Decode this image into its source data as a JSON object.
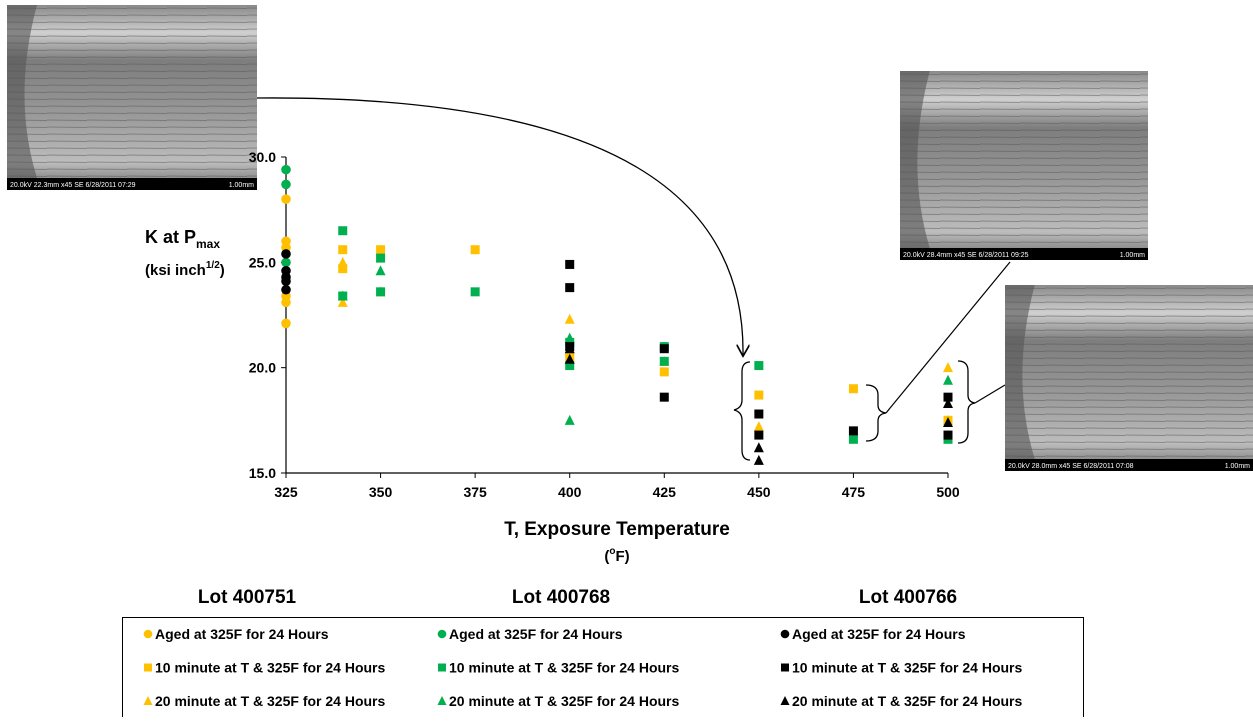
{
  "chart_data": {
    "type": "scatter",
    "ylabel": "K at P",
    "ylabel_sub": "max",
    "yunit": "(ksi inch",
    "yunit_sup": "1/2",
    "yunit_end": ")",
    "xlabel": "T, Exposure Temperature",
    "xunit": "(",
    "xunit_sup": "o",
    "xunit_end": "F)",
    "xlim": [
      325,
      500
    ],
    "xticks": [
      325,
      350,
      375,
      400,
      425,
      450,
      475,
      500
    ],
    "ylim": [
      15,
      30
    ],
    "yticks": [
      {
        "value": 15,
        "label": "15.0"
      },
      {
        "value": 20,
        "label": "20.0"
      },
      {
        "value": 25,
        "label": "25.0"
      },
      {
        "value": 30,
        "label": "30.0"
      }
    ],
    "grid": false,
    "legend_groups": [
      "Lot 400751",
      "Lot 400768",
      "Lot 400766"
    ],
    "series": [
      {
        "name": "Aged at 325F for 24 Hours",
        "color": "#ffc000",
        "marker": "circle",
        "x": [
          325,
          325,
          325,
          325,
          325,
          325
        ],
        "values": [
          28.0,
          26.0,
          25.7,
          23.4,
          23.1,
          22.1
        ]
      },
      {
        "name": "10 minute at T & 325F for 24 Hours",
        "color": "#ffc000",
        "marker": "square",
        "x": [
          340,
          340,
          350,
          375,
          400,
          425,
          450,
          475,
          500
        ],
        "values": [
          25.6,
          24.7,
          25.6,
          25.6,
          20.5,
          19.8,
          18.7,
          19.0,
          17.5
        ]
      },
      {
        "name": "20 minute at T & 325F for 24 Hours",
        "color": "#ffc000",
        "marker": "triangle",
        "x": [
          340,
          340,
          350,
          400,
          400,
          425,
          450,
          500,
          500
        ],
        "values": [
          25.0,
          23.1,
          23.6,
          22.3,
          20.8,
          20.3,
          17.2,
          20.0,
          17.5
        ]
      },
      {
        "name": "Aged at 325F for 24 Hours",
        "color": "#00b050",
        "marker": "circle",
        "x": [
          325,
          325,
          325
        ],
        "values": [
          29.4,
          28.7,
          25.0
        ]
      },
      {
        "name": "10 minute at T & 325F for 24 Hours",
        "color": "#00b050",
        "marker": "square",
        "x": [
          340,
          340,
          350,
          350,
          375,
          400,
          400,
          425,
          425,
          450,
          475,
          500
        ],
        "values": [
          26.5,
          23.4,
          25.2,
          23.6,
          23.6,
          21.2,
          20.1,
          21.0,
          20.3,
          20.1,
          16.6,
          16.6
        ]
      },
      {
        "name": "20 minute at T & 325F for 24 Hours",
        "color": "#00b050",
        "marker": "triangle",
        "x": [
          340,
          350,
          400,
          400,
          500
        ],
        "values": [
          23.4,
          24.6,
          21.4,
          17.5,
          19.4
        ]
      },
      {
        "name": "Aged at 325F for 24 Hours",
        "color": "#000000",
        "marker": "circle",
        "x": [
          325,
          325,
          325,
          325,
          325
        ],
        "values": [
          25.4,
          24.6,
          24.3,
          24.1,
          23.7
        ]
      },
      {
        "name": "10 minute at T & 325F for 24 Hours",
        "color": "#000000",
        "marker": "square",
        "x": [
          400,
          400,
          400,
          425,
          425,
          450,
          450,
          475,
          500,
          500
        ],
        "values": [
          24.9,
          23.8,
          21.0,
          20.9,
          18.6,
          17.8,
          16.8,
          17.0,
          18.6,
          16.8
        ]
      },
      {
        "name": "20 minute at T & 325F for 24 Hours",
        "color": "#000000",
        "marker": "triangle",
        "x": [
          400,
          400,
          450,
          450,
          500,
          500
        ],
        "values": [
          20.9,
          20.4,
          16.2,
          15.6,
          18.3,
          17.4
        ]
      }
    ]
  },
  "images": [
    {
      "caption": "20.0kV 22.3mm x45 SE  6/28/2011 07:29",
      "scale": "1.00mm"
    },
    {
      "caption": "20.0kV 28.4mm x45 SE  6/28/2011 09:25",
      "scale": "1.00mm"
    },
    {
      "caption": "20.0kV 28.0mm x45 SE  6/28/2011 07:08",
      "scale": "1.00mm"
    }
  ]
}
